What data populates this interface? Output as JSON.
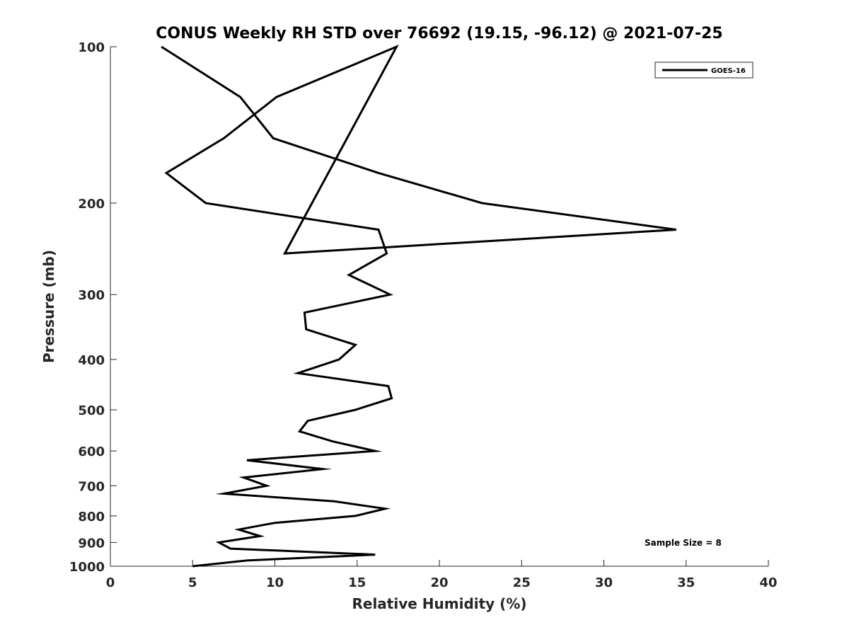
{
  "chart_data": {
    "type": "line",
    "title": "CONUS Weekly RH STD over 76692 (19.15, -96.12) @ 2021-07-25",
    "xlabel": "Relative Humidity (%)",
    "ylabel": "Pressure (mb)",
    "xlim": [
      0,
      40
    ],
    "ylim": [
      1000,
      100
    ],
    "y_scale": "log",
    "y_reversed": true,
    "grid": false,
    "legend_position": "top-right",
    "x_ticks": [
      "0",
      "5",
      "10",
      "15",
      "20",
      "25",
      "30",
      "35",
      "40"
    ],
    "x_tick_values": [
      0,
      5,
      10,
      15,
      20,
      25,
      30,
      35,
      40
    ],
    "y_ticks": [
      "100",
      "200",
      "300",
      "400",
      "500",
      "600",
      "700",
      "800",
      "900",
      "1000"
    ],
    "y_tick_values": [
      100,
      200,
      300,
      400,
      500,
      600,
      700,
      800,
      900,
      1000
    ],
    "series": [
      {
        "name": "GOES-16",
        "color": "#000000",
        "x": [
          5.0,
          8.3,
          16.1,
          7.3,
          6.6,
          9.1,
          7.8,
          10.0,
          14.9,
          16.7,
          13.6,
          6.9,
          9.5,
          8.1,
          12.9,
          8.3,
          16.1,
          13.5,
          11.5,
          12.0,
          14.9,
          17.1,
          16.9,
          11.4,
          13.9,
          14.9,
          11.9,
          11.8,
          17.0,
          14.5,
          16.8,
          16.3,
          5.8,
          3.4,
          6.9,
          10.1,
          17.4,
          10.6,
          34.4,
          22.6,
          16.3,
          9.9,
          7.9,
          3.1
        ],
        "y": [
          1000,
          975,
          950,
          925,
          900,
          875,
          850,
          825,
          800,
          775,
          750,
          725,
          700,
          675,
          650,
          625,
          600,
          575,
          550,
          525,
          500,
          475,
          450,
          425,
          400,
          375,
          350,
          325,
          300,
          275,
          250,
          225,
          200,
          175,
          150,
          125,
          100,
          250,
          225,
          200,
          175,
          150,
          125,
          100
        ]
      }
    ]
  },
  "annotation": "Sample Size = 8"
}
